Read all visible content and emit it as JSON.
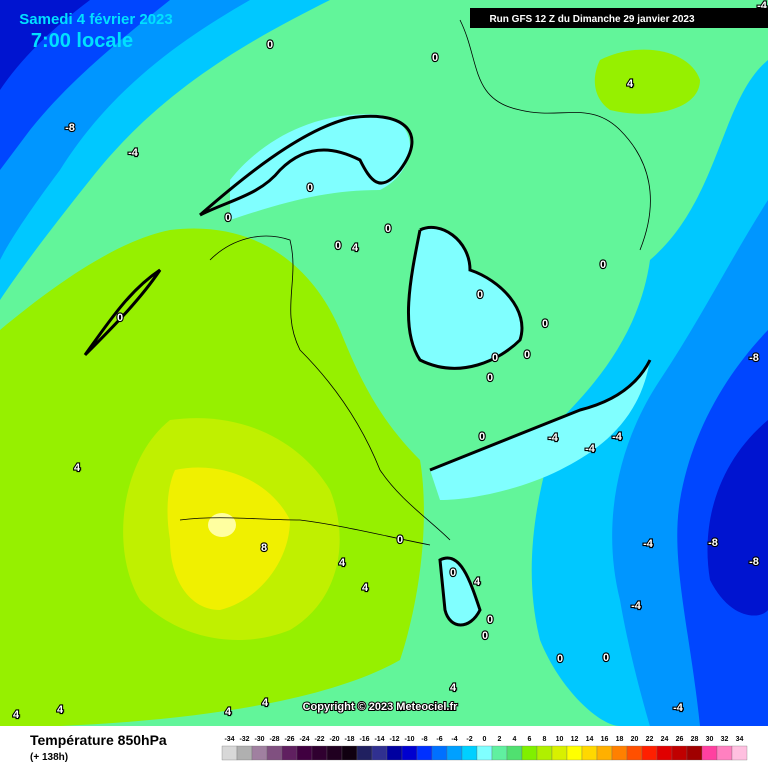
{
  "header": {
    "date": "Samedi 4 février 2023",
    "time": "7:00 locale",
    "run": "Run GFS 12 Z du Dimanche 29 janvier 2023"
  },
  "copyright": "Copyright © 2023 Meteociel.fr",
  "footer": {
    "title": "Température 850hPa",
    "subtitle": "(+ 138h)"
  },
  "legend": {
    "labels": [
      -34,
      -32,
      -30,
      -28,
      -26,
      -24,
      -22,
      -20,
      -18,
      -16,
      -14,
      -12,
      -10,
      -8,
      -6,
      -4,
      -2,
      0,
      2,
      4,
      6,
      8,
      10,
      12,
      14,
      16,
      18,
      20,
      22,
      24,
      26,
      28,
      30,
      32,
      34
    ],
    "colors": [
      "#d8d8d8",
      "#b0b0b0",
      "#a080a0",
      "#805080",
      "#602060",
      "#400040",
      "#300030",
      "#200020",
      "#100010",
      "#202060",
      "#303090",
      "#0000a0",
      "#0000d0",
      "#0030ff",
      "#0070ff",
      "#00a0ff",
      "#00d0ff",
      "#80ffff",
      "#60f0a0",
      "#50e070",
      "#80f000",
      "#b0f000",
      "#d8f000",
      "#ffff00",
      "#ffd800",
      "#ffb000",
      "#ff8000",
      "#ff5000",
      "#ff2000",
      "#e00000",
      "#c00000",
      "#a00000",
      "#ff40a0",
      "#ff80c0",
      "#ffc0e0"
    ]
  },
  "map_labels": [
    "0",
    "0",
    "-8",
    "-4",
    "4",
    "0",
    "0",
    "0",
    "4",
    "0",
    "0",
    "0",
    "0",
    "0",
    "0",
    "0",
    "0",
    "0",
    "-4",
    "-4",
    "-4",
    "-8",
    "4",
    "8",
    "4",
    "4",
    "0",
    "0",
    "4",
    "-4",
    "-8",
    "-8",
    "-4",
    "0",
    "0",
    "0",
    "0",
    "4",
    "4",
    "4",
    "4",
    "4",
    "-4",
    "-4"
  ]
}
